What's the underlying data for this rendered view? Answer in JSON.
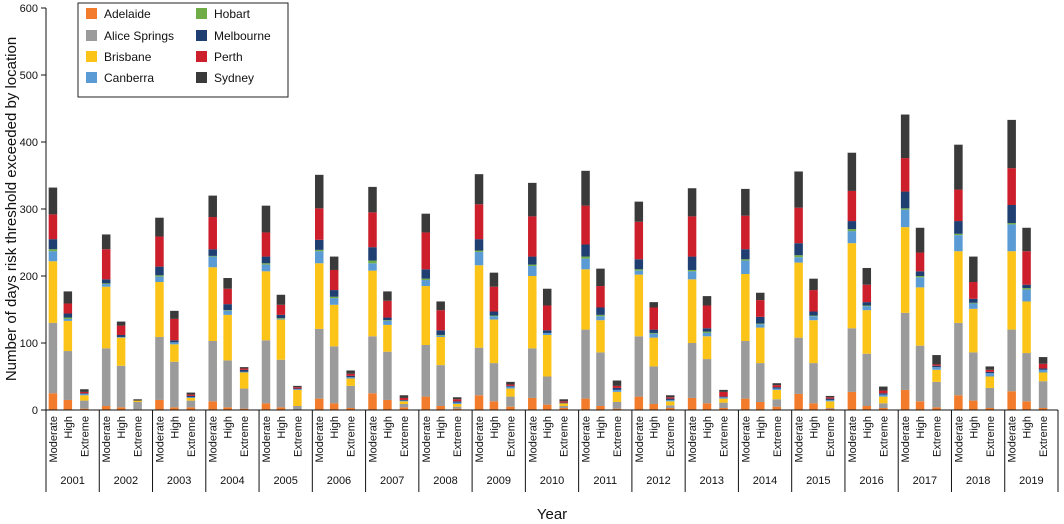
{
  "chart_data": {
    "type": "bar",
    "stacked": true,
    "title": "",
    "xlabel": "Year",
    "ylabel": "Number of days risk threshold exceeded by location",
    "ylim": [
      0,
      600
    ],
    "yticks": [
      "0",
      "100",
      "200",
      "300",
      "400",
      "500",
      "600"
    ],
    "grid": false,
    "legend_position": "top-left",
    "years": [
      "2001",
      "2002",
      "2003",
      "2004",
      "2005",
      "2006",
      "2007",
      "2008",
      "2009",
      "2010",
      "2011",
      "2012",
      "2013",
      "2014",
      "2015",
      "2016",
      "2017",
      "2018",
      "2019"
    ],
    "levels": [
      "Moderate",
      "High",
      "Extreme"
    ],
    "series": [
      {
        "name": "Adelaide",
        "color": "#f27c2c"
      },
      {
        "name": "Alice Springs",
        "color": "#9b9b9b"
      },
      {
        "name": "Brisbane",
        "color": "#fcc419"
      },
      {
        "name": "Canberra",
        "color": "#5b9bd5"
      },
      {
        "name": "Hobart",
        "color": "#70ad47"
      },
      {
        "name": "Melbourne",
        "color": "#1f3f73"
      },
      {
        "name": "Perth",
        "color": "#cc1f2b"
      },
      {
        "name": "Sydney",
        "color": "#3a3a3a"
      }
    ],
    "legend_order": [
      0,
      1,
      2,
      3,
      4,
      5,
      6,
      7
    ],
    "data": [
      [
        [
          25,
          105,
          92,
          15,
          3,
          15,
          37,
          40
        ],
        [
          15,
          73,
          45,
          3,
          2,
          6,
          15,
          18
        ],
        [
          2,
          12,
          8,
          2,
          0,
          1,
          2,
          4
        ]
      ],
      [
        [
          6,
          86,
          92,
          4,
          1,
          6,
          45,
          22
        ],
        [
          4,
          62,
          42,
          1,
          0,
          3,
          14,
          6
        ],
        [
          1,
          11,
          2,
          0,
          0,
          0,
          0,
          2
        ]
      ],
      [
        [
          15,
          94,
          82,
          8,
          2,
          13,
          45,
          28
        ],
        [
          4,
          68,
          26,
          3,
          0,
          3,
          32,
          12
        ],
        [
          4,
          10,
          4,
          1,
          0,
          2,
          2,
          3
        ]
      ],
      [
        [
          13,
          90,
          110,
          16,
          1,
          10,
          48,
          32
        ],
        [
          4,
          70,
          68,
          6,
          1,
          9,
          23,
          16
        ],
        [
          2,
          30,
          24,
          1,
          0,
          3,
          2,
          2
        ]
      ],
      [
        [
          10,
          94,
          103,
          10,
          2,
          10,
          36,
          40
        ],
        [
          4,
          71,
          60,
          1,
          1,
          5,
          15,
          15
        ],
        [
          0,
          6,
          24,
          1,
          0,
          1,
          2,
          2
        ]
      ],
      [
        [
          17,
          104,
          98,
          18,
          2,
          15,
          47,
          50
        ],
        [
          10,
          85,
          62,
          10,
          2,
          10,
          30,
          20
        ],
        [
          3,
          33,
          11,
          2,
          0,
          2,
          3,
          5
        ]
      ],
      [
        [
          25,
          85,
          98,
          11,
          4,
          20,
          52,
          38
        ],
        [
          15,
          72,
          40,
          6,
          1,
          4,
          25,
          14
        ],
        [
          4,
          5,
          4,
          1,
          0,
          1,
          3,
          4
        ]
      ],
      [
        [
          20,
          77,
          88,
          9,
          2,
          14,
          55,
          28
        ],
        [
          6,
          61,
          42,
          2,
          1,
          7,
          30,
          13
        ],
        [
          2,
          3,
          4,
          2,
          0,
          2,
          3,
          3
        ]
      ],
      [
        [
          22,
          71,
          123,
          20,
          2,
          17,
          52,
          45
        ],
        [
          13,
          57,
          65,
          5,
          1,
          6,
          37,
          21
        ],
        [
          5,
          15,
          12,
          3,
          0,
          1,
          2,
          4
        ]
      ],
      [
        [
          18,
          74,
          108,
          15,
          2,
          12,
          60,
          50
        ],
        [
          8,
          42,
          62,
          3,
          0,
          4,
          37,
          25
        ],
        [
          3,
          3,
          4,
          0,
          0,
          1,
          2,
          3
        ]
      ],
      [
        [
          17,
          103,
          90,
          16,
          3,
          18,
          58,
          52
        ],
        [
          6,
          80,
          48,
          6,
          2,
          11,
          32,
          26
        ],
        [
          2,
          10,
          15,
          3,
          0,
          3,
          3,
          8
        ]
      ],
      [
        [
          20,
          90,
          92,
          6,
          2,
          15,
          56,
          30
        ],
        [
          9,
          56,
          43,
          6,
          1,
          5,
          33,
          8
        ],
        [
          3,
          4,
          6,
          2,
          0,
          2,
          2,
          3
        ]
      ],
      [
        [
          18,
          82,
          95,
          12,
          2,
          20,
          60,
          42
        ],
        [
          10,
          66,
          34,
          5,
          2,
          5,
          34,
          14
        ],
        [
          3,
          8,
          6,
          2,
          0,
          1,
          7,
          3
        ]
      ],
      [
        [
          17,
          86,
          100,
          20,
          2,
          15,
          50,
          40
        ],
        [
          12,
          58,
          53,
          5,
          1,
          10,
          25,
          11
        ],
        [
          5,
          11,
          14,
          2,
          0,
          2,
          3,
          3
        ]
      ],
      [
        [
          24,
          84,
          112,
          8,
          3,
          18,
          53,
          54
        ],
        [
          10,
          60,
          64,
          6,
          1,
          6,
          32,
          17
        ],
        [
          2,
          1,
          10,
          2,
          0,
          2,
          2,
          2
        ]
      ],
      [
        [
          27,
          95,
          127,
          18,
          3,
          12,
          45,
          57
        ],
        [
          6,
          78,
          65,
          6,
          1,
          5,
          26,
          25
        ],
        [
          3,
          7,
          10,
          3,
          0,
          2,
          4,
          6
        ]
      ],
      [
        [
          30,
          115,
          128,
          26,
          2,
          25,
          50,
          65
        ],
        [
          13,
          83,
          87,
          15,
          2,
          7,
          28,
          37
        ],
        [
          4,
          38,
          18,
          4,
          0,
          2,
          2,
          14
        ]
      ],
      [
        [
          22,
          108,
          107,
          24,
          2,
          19,
          47,
          67
        ],
        [
          14,
          72,
          65,
          8,
          1,
          6,
          25,
          38
        ],
        [
          3,
          30,
          17,
          5,
          0,
          2,
          3,
          5
        ]
      ],
      [
        [
          28,
          92,
          117,
          40,
          2,
          27,
          55,
          72
        ],
        [
          13,
          72,
          77,
          18,
          2,
          5,
          50,
          35
        ],
        [
          3,
          40,
          13,
          4,
          0,
          2,
          7,
          10
        ]
      ]
    ]
  }
}
